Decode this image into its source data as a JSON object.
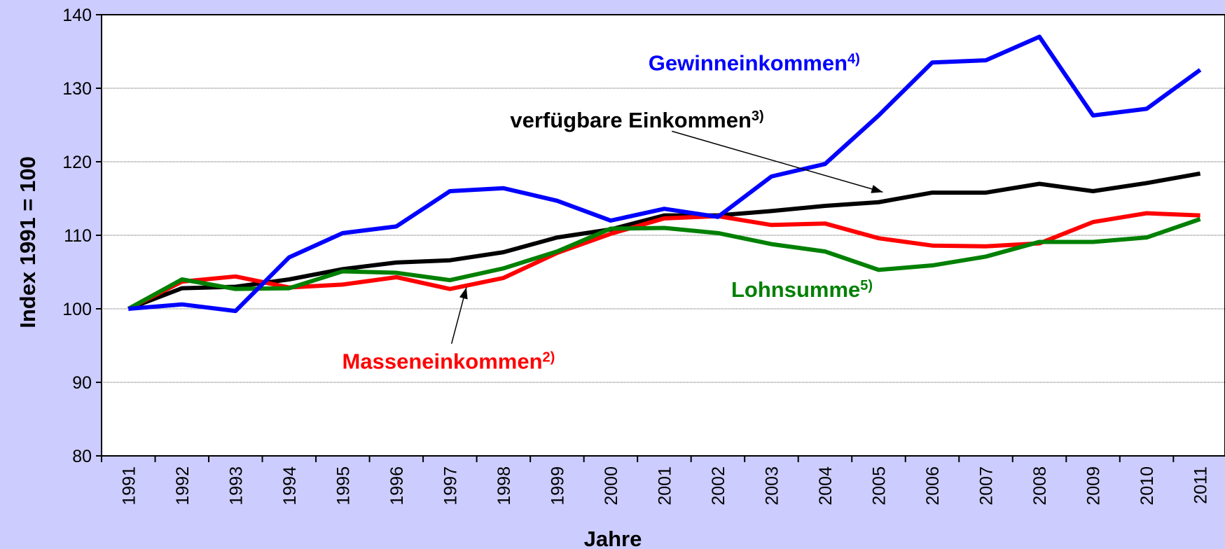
{
  "chart_data": {
    "type": "line",
    "xlabel": "Jahre",
    "ylabel": "Index 1991 = 100",
    "categories": [
      "1991",
      "1992",
      "1993",
      "1994",
      "1995",
      "1996",
      "1997",
      "1998",
      "1999",
      "2000",
      "2001",
      "2002",
      "2003",
      "2004",
      "2005",
      "2006",
      "2007",
      "2008",
      "2009",
      "2010",
      "2011"
    ],
    "series": [
      {
        "name": "Gewinneinkommen",
        "footnote": "4)",
        "color": "#0000ff",
        "values": [
          100,
          100.6,
          99.7,
          107,
          110.3,
          111.2,
          116,
          116.4,
          114.7,
          112,
          113.6,
          112.5,
          118,
          119.7,
          126.3,
          133.5,
          133.8,
          137,
          126.3,
          127.2,
          132.5
        ]
      },
      {
        "name": "verfügbare Einkommen",
        "footnote": "3)",
        "color": "#000000",
        "values": [
          100,
          102.8,
          103,
          104,
          105.4,
          106.3,
          106.6,
          107.7,
          109.7,
          110.8,
          112.7,
          112.7,
          113.3,
          114,
          114.5,
          115.8,
          115.8,
          117,
          116,
          117.1,
          118.4
        ]
      },
      {
        "name": "Masseneinkommen",
        "footnote": "2)",
        "color": "#ff0000",
        "values": [
          100,
          103.7,
          104.4,
          102.9,
          103.3,
          104.3,
          102.7,
          104.2,
          107.6,
          110.2,
          112.3,
          112.6,
          111.4,
          111.6,
          109.6,
          108.6,
          108.5,
          108.9,
          111.8,
          113,
          112.7
        ]
      },
      {
        "name": "Lohnsumme",
        "footnote": "5)",
        "color": "#008000",
        "values": [
          100,
          104,
          102.7,
          102.8,
          105.1,
          104.9,
          103.9,
          105.5,
          107.8,
          110.9,
          111,
          110.3,
          108.8,
          107.8,
          105.3,
          105.9,
          107.1,
          109.1,
          109.1,
          109.7,
          112.2
        ]
      }
    ],
    "ylim": [
      80,
      140
    ],
    "yticks": [
      80,
      90,
      100,
      110,
      120,
      130,
      140
    ],
    "grid": true
  }
}
